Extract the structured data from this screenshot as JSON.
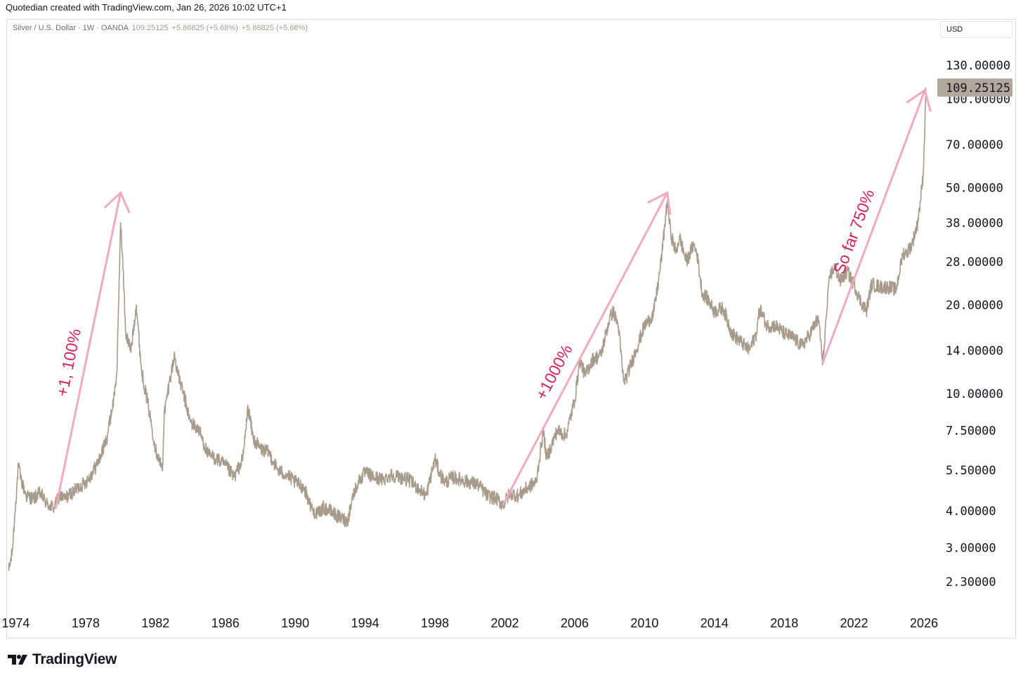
{
  "credit": "Quotedian created with TradingView.com, Jan 26, 2026 10:02 UTC+1",
  "legend": {
    "symbol": "Silver / U.S. Dollar · 1W · OANDA",
    "price": "109.25125",
    "change1": "+5.86825 (+5.68%)",
    "change2": "+5.86825 (+5.68%)"
  },
  "currency_button": "USD",
  "footer": {
    "brand": "TradingView"
  },
  "colors": {
    "line": "#a89b8c",
    "annotation": "#d6245a",
    "arrow": "#f0aabb",
    "last_box": "#b3a69a"
  },
  "chart_data": {
    "type": "line",
    "title": "Silver / U.S. Dollar · 1W · OANDA",
    "scale": "log",
    "xlim": [
      1973.5,
      2026.6
    ],
    "ylim": [
      1.96,
      159.3
    ],
    "y_ticks": [
      {
        "value": 130,
        "label": "130.00000"
      },
      {
        "value": 100,
        "label": "100.00000"
      },
      {
        "value": 70,
        "label": "70.00000"
      },
      {
        "value": 50,
        "label": "50.00000"
      },
      {
        "value": 38,
        "label": "38.00000"
      },
      {
        "value": 28,
        "label": "28.00000"
      },
      {
        "value": 20,
        "label": "20.00000"
      },
      {
        "value": 14,
        "label": "14.00000"
      },
      {
        "value": 10,
        "label": "10.00000"
      },
      {
        "value": 7.5,
        "label": "7.50000"
      },
      {
        "value": 5.5,
        "label": "5.50000"
      },
      {
        "value": 4,
        "label": "4.00000"
      },
      {
        "value": 3,
        "label": "3.00000"
      },
      {
        "value": 2.3,
        "label": "2.30000"
      }
    ],
    "x_ticks": [
      {
        "value": 1974,
        "label": "1974"
      },
      {
        "value": 1978,
        "label": "1978"
      },
      {
        "value": 1982,
        "label": "1982"
      },
      {
        "value": 1986,
        "label": "1986"
      },
      {
        "value": 1990,
        "label": "1990"
      },
      {
        "value": 1994,
        "label": "1994"
      },
      {
        "value": 1998,
        "label": "1998"
      },
      {
        "value": 2002,
        "label": "2002"
      },
      {
        "value": 2006,
        "label": "2006"
      },
      {
        "value": 2010,
        "label": "2010"
      },
      {
        "value": 2014,
        "label": "2014"
      },
      {
        "value": 2018,
        "label": "2018"
      },
      {
        "value": 2022,
        "label": "2022"
      },
      {
        "value": 2026,
        "label": "2026"
      }
    ],
    "last_value": 109.25125,
    "last_label": "109.25125",
    "series": [
      {
        "name": "Silver / U.S. Dollar",
        "x": [
          1973.6,
          1973.8,
          1974.0,
          1974.15,
          1974.3,
          1974.6,
          1975.0,
          1975.4,
          1975.8,
          1976.2,
          1976.5,
          1976.8,
          1977.2,
          1977.6,
          1978.0,
          1978.4,
          1978.8,
          1979.2,
          1979.6,
          1979.8,
          1980.0,
          1980.1,
          1980.3,
          1980.6,
          1980.9,
          1981.2,
          1981.6,
          1982.0,
          1982.4,
          1982.5,
          1982.8,
          1983.1,
          1983.3,
          1983.6,
          1984.0,
          1984.5,
          1985.0,
          1985.5,
          1986.0,
          1986.5,
          1987.0,
          1987.3,
          1987.6,
          1988.0,
          1988.5,
          1989.0,
          1989.5,
          1990.0,
          1990.5,
          1991.0,
          1991.3,
          1991.6,
          1992.0,
          1992.5,
          1993.0,
          1993.3,
          1993.6,
          1994.0,
          1994.5,
          1995.0,
          1995.5,
          1996.0,
          1996.5,
          1997.0,
          1997.5,
          1998.0,
          1998.3,
          1998.6,
          1999.0,
          1999.5,
          2000.0,
          2000.5,
          2001.0,
          2001.5,
          2001.9,
          2002.3,
          2002.8,
          2003.3,
          2003.8,
          2004.2,
          2004.4,
          2004.6,
          2005.0,
          2005.5,
          2006.0,
          2006.3,
          2006.6,
          2007.0,
          2007.5,
          2008.0,
          2008.2,
          2008.5,
          2008.8,
          2009.0,
          2009.5,
          2010.0,
          2010.5,
          2010.8,
          2011.0,
          2011.3,
          2011.5,
          2011.8,
          2012.0,
          2012.4,
          2012.8,
          2013.0,
          2013.3,
          2013.6,
          2014.0,
          2014.5,
          2015.0,
          2015.5,
          2016.0,
          2016.4,
          2016.6,
          2017.0,
          2017.5,
          2018.0,
          2018.5,
          2019.0,
          2019.5,
          2019.8,
          2020.0,
          2020.2,
          2020.4,
          2020.6,
          2020.9,
          2021.2,
          2021.6,
          2022.0,
          2022.3,
          2022.7,
          2023.0,
          2023.5,
          2024.0,
          2024.4,
          2024.8,
          2025.0,
          2025.3,
          2025.6,
          2025.8,
          2025.95,
          2026.05,
          2026.1
        ],
        "values": [
          2.5,
          2.9,
          4.3,
          5.7,
          5.1,
          4.5,
          4.4,
          4.6,
          4.2,
          4.1,
          4.5,
          4.4,
          4.6,
          4.8,
          5.0,
          5.4,
          6.0,
          7.0,
          9.5,
          12.0,
          38.0,
          30.0,
          16.0,
          14.0,
          20.0,
          12.0,
          9.0,
          6.5,
          5.5,
          8.5,
          11.0,
          13.5,
          11.5,
          10.0,
          8.0,
          7.5,
          6.2,
          6.0,
          5.7,
          5.2,
          6.0,
          9.0,
          7.0,
          6.5,
          6.3,
          5.5,
          5.3,
          5.0,
          4.8,
          4.0,
          3.9,
          4.1,
          4.0,
          3.8,
          3.7,
          4.5,
          5.0,
          5.4,
          5.2,
          5.1,
          5.3,
          5.2,
          5.1,
          4.8,
          4.5,
          6.0,
          5.3,
          5.0,
          5.2,
          5.1,
          5.0,
          4.9,
          4.5,
          4.4,
          4.2,
          4.6,
          4.5,
          4.8,
          5.0,
          7.5,
          6.0,
          6.5,
          7.5,
          7.2,
          9.5,
          13.0,
          11.5,
          13.0,
          13.5,
          18.0,
          19.0,
          17.0,
          11.0,
          11.5,
          14.0,
          17.0,
          18.5,
          24.0,
          30.0,
          45.0,
          35.0,
          30.0,
          34.0,
          28.0,
          32.0,
          30.0,
          22.0,
          21.0,
          19.0,
          19.5,
          16.0,
          15.0,
          14.0,
          16.0,
          19.5,
          17.0,
          17.0,
          16.0,
          15.5,
          14.5,
          16.0,
          17.5,
          17.5,
          12.5,
          18.0,
          25.0,
          27.0,
          24.0,
          26.0,
          23.5,
          21.0,
          19.0,
          23.5,
          23.0,
          23.0,
          22.5,
          30.0,
          30.0,
          32.0,
          37.0,
          45.0,
          55.0,
          80.0,
          109.25
        ]
      }
    ],
    "annotations": [
      {
        "text": "+1, 100%",
        "from": {
          "x": 1976.3,
          "y": 4.1
        },
        "to": {
          "x": 1980.0,
          "y": 48.0
        }
      },
      {
        "text": "+1000%",
        "from": {
          "x": 2001.9,
          "y": 4.2
        },
        "to": {
          "x": 2011.3,
          "y": 48.0
        }
      },
      {
        "text": "So far 750%",
        "from": {
          "x": 2020.2,
          "y": 12.7
        },
        "to": {
          "x": 2026.05,
          "y": 107.0
        }
      }
    ]
  }
}
